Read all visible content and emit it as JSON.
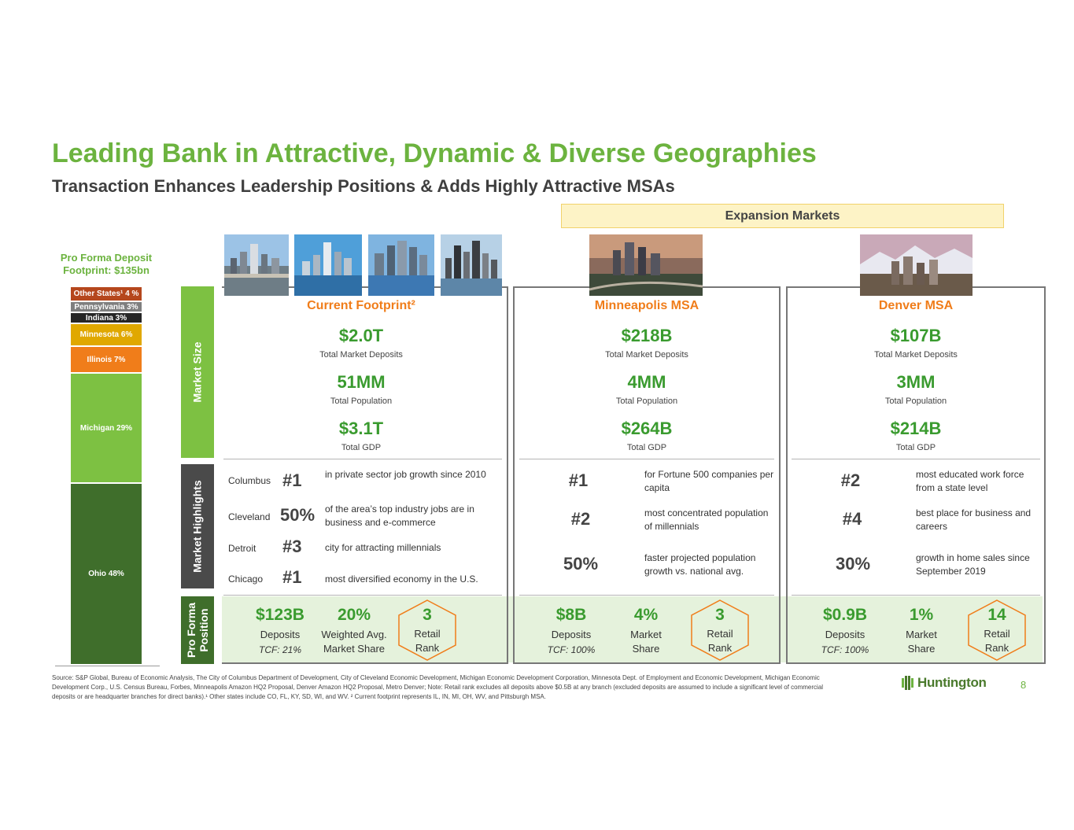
{
  "header": {
    "title": "Leading Bank in Attractive, Dynamic & Diverse Geographies",
    "subtitle": "Transaction Enhances Leadership Positions & Adds Highly Attractive MSAs",
    "expansion_label": "Expansion Markets"
  },
  "footprint": {
    "title_line1": "Pro Forma Deposit",
    "title_line2": "Footprint: $135bn",
    "segments": [
      {
        "label": "Other States¹ 4 %",
        "value": 4,
        "color": "#b5471d"
      },
      {
        "label": "Pennsylvania 3%",
        "value": 3,
        "color": "#7f7f7f"
      },
      {
        "label": "Indiana 3%",
        "value": 3,
        "color": "#262626"
      },
      {
        "label": "Minnesota 6%",
        "value": 6,
        "color": "#e0a800"
      },
      {
        "label": "Illinois 7%",
        "value": 7,
        "color": "#f07d1a"
      },
      {
        "label": "Michigan 29%",
        "value": 29,
        "color": "#7dc142"
      },
      {
        "label": "Ohio 48%",
        "value": 48,
        "color": "#3f6e2b"
      }
    ]
  },
  "side_labels": {
    "market_size": "Market Size",
    "market_highlights": "Market Highlights",
    "pro_forma_line1": "Pro Forma",
    "pro_forma_line2": "Position"
  },
  "columns": {
    "current": {
      "name": "Current Footprint²",
      "metric1_value": "$2.0T",
      "metric1_label": "Total Market Deposits",
      "metric2_value": "51MM",
      "metric2_label": "Total Population",
      "metric3_value": "$3.1T",
      "metric3_label": "Total GDP",
      "highlights": [
        {
          "city": "Columbus",
          "num": "#1",
          "text": "in private sector job growth since 2010"
        },
        {
          "city": "Cleveland",
          "num": "50%",
          "text": "of the area’s top industry jobs are in business and e-commerce"
        },
        {
          "city": "Detroit",
          "num": "#3",
          "text": "city for attracting millennials"
        },
        {
          "city": "Chicago",
          "num": "#1",
          "text": "most diversified economy in the U.S."
        }
      ],
      "position": {
        "deposits": "$123B",
        "deposits_label": "Deposits",
        "tcf": "TCF: 21%",
        "share": "20%",
        "share_label1": "Weighted Avg.",
        "share_label2": "Market Share",
        "rank": "3",
        "rank_label1": "Retail",
        "rank_label2": "Rank"
      }
    },
    "minneapolis": {
      "name": "Minneapolis MSA",
      "metric1_value": "$218B",
      "metric1_label": "Total Market Deposits",
      "metric2_value": "4MM",
      "metric2_label": "Total Population",
      "metric3_value": "$264B",
      "metric3_label": "Total GDP",
      "highlights": [
        {
          "num": "#1",
          "text": "for Fortune 500 companies per capita"
        },
        {
          "num": "#2",
          "text": "most concentrated population of millennials"
        },
        {
          "num": "50%",
          "text": "faster projected population growth vs. national avg."
        }
      ],
      "position": {
        "deposits": "$8B",
        "deposits_label": "Deposits",
        "tcf": "TCF: 100%",
        "share": "4%",
        "share_label1": "Market",
        "share_label2": "Share",
        "rank": "3",
        "rank_label1": "Retail",
        "rank_label2": "Rank"
      }
    },
    "denver": {
      "name": "Denver MSA",
      "metric1_value": "$107B",
      "metric1_label": "Total Market Deposits",
      "metric2_value": "3MM",
      "metric2_label": "Total Population",
      "metric3_value": "$214B",
      "metric3_label": "Total GDP",
      "highlights": [
        {
          "num": "#2",
          "text": "most educated work force from a state level"
        },
        {
          "num": "#4",
          "text": "best place for business and careers"
        },
        {
          "num": "30%",
          "text": "growth in home sales since September 2019"
        }
      ],
      "position": {
        "deposits": "$0.9B",
        "deposits_label": "Deposits",
        "tcf": "TCF: 100%",
        "share": "1%",
        "share_label1": "Market",
        "share_label2": "Share",
        "rank": "14",
        "rank_label1": "Retail",
        "rank_label2": "Rank"
      }
    }
  },
  "footer": {
    "source": "Source:  S&P Global, Bureau of Economic Analysis, The City of Columbus Department of Development, City of Cleveland Economic Development, Michigan Economic Development Corporation, Minnesota Dept. of Employment and Economic Development, Michigan Economic Development Corp., U.S. Census Bureau, Forbes, Minneapolis Amazon HQ2 Proposal, Denver Amazon HQ2 Proposal, Metro Denver;  Note: Retail rank excludes all deposits above $0.5B at any branch (excluded deposits are assumed to include a significant level of commercial  deposits or are headquarter branches for direct banks).¹ Other states include CO, FL, KY, SD, WI, and WV. ² Current footprint represents IL, IN, MI, OH, WV, and Pittsburgh MSA.",
    "logo_text": "Huntington",
    "page_number": "8"
  },
  "colors": {
    "accent_green": "#6cb33f",
    "value_green": "#3a9b2f",
    "orange": "#f07d1a",
    "band": "#e5f2dc"
  }
}
